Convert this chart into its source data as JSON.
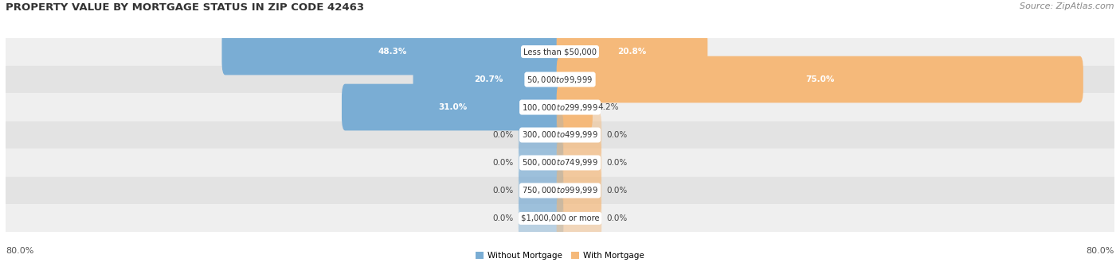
{
  "title": "PROPERTY VALUE BY MORTGAGE STATUS IN ZIP CODE 42463",
  "source": "Source: ZipAtlas.com",
  "categories": [
    "Less than $50,000",
    "$50,000 to $99,999",
    "$100,000 to $299,999",
    "$300,000 to $499,999",
    "$500,000 to $749,999",
    "$750,000 to $999,999",
    "$1,000,000 or more"
  ],
  "without_mortgage": [
    48.3,
    20.7,
    31.0,
    0.0,
    0.0,
    0.0,
    0.0
  ],
  "with_mortgage": [
    20.8,
    75.0,
    4.2,
    0.0,
    0.0,
    0.0,
    0.0
  ],
  "without_mortgage_color": "#7aadd4",
  "with_mortgage_color": "#f5b97a",
  "row_colors": [
    "#efefef",
    "#e3e3e3"
  ],
  "axis_limit": 80.0,
  "legend_without": "Without Mortgage",
  "legend_with": "With Mortgage",
  "title_fontsize": 9.5,
  "source_fontsize": 8,
  "label_fontsize": 7.5,
  "category_fontsize": 7.2,
  "axis_label_fontsize": 8,
  "min_bar_display": 5.5
}
